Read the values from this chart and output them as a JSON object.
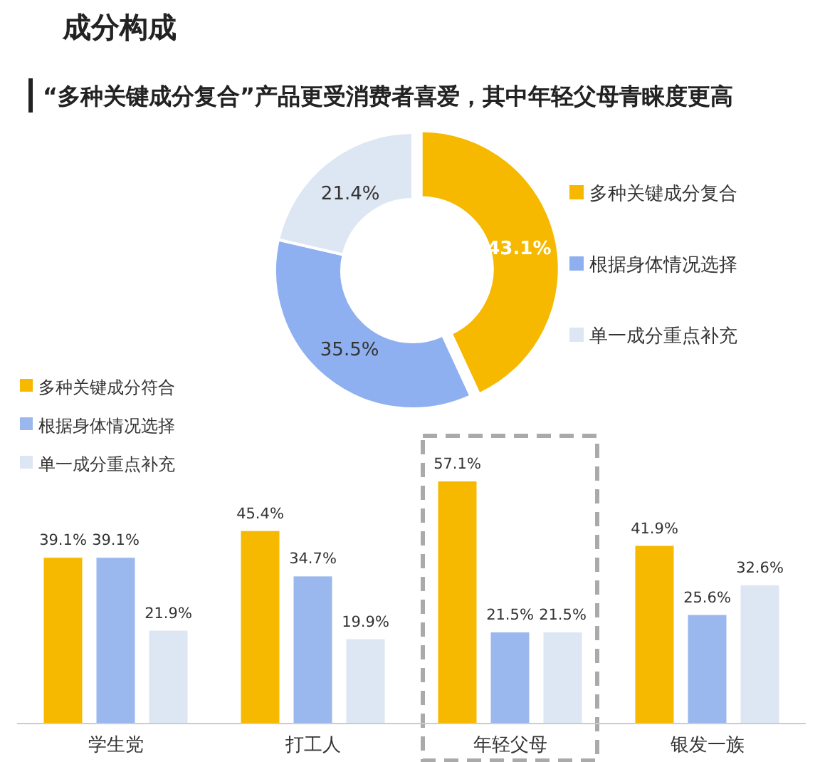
{
  "chart_data": [
    {
      "type": "donut",
      "title": "成分构成",
      "subtitle": "“多种关键成分复合”产品更受消费者喜爱，其中年轻父母青睐度更高",
      "categories": [
        "多种关键成分复合",
        "根据身体情况选择",
        "单一成分重点补充"
      ],
      "values": [
        43.1,
        35.5,
        21.4
      ],
      "colors": [
        "#f6b900",
        "#8fb0f0",
        "#dde6f3"
      ],
      "value_labels": [
        "43.1%",
        "35.5%",
        "21.4%"
      ],
      "legend": "right"
    },
    {
      "type": "bar",
      "categories": [
        "学生党",
        "打工人",
        "年轻父母",
        "银发一族"
      ],
      "series": [
        {
          "name": "多种关键成分符合",
          "color": "#f6b900",
          "values": [
            39.1,
            45.4,
            57.1,
            41.9
          ],
          "value_labels": [
            "39.1%",
            "45.4%",
            "57.1%",
            "41.9%"
          ]
        },
        {
          "name": "根据身体情况选择",
          "color": "#9ab8ee",
          "values": [
            39.1,
            34.7,
            21.5,
            25.6
          ],
          "value_labels": [
            "39.1%",
            "34.7%",
            "21.5%",
            "25.6%"
          ]
        },
        {
          "name": "单一成分重点补充",
          "color": "#dde6f3",
          "values": [
            21.9,
            19.9,
            21.5,
            32.6
          ],
          "value_labels": [
            "21.9%",
            "19.9%",
            "21.5%",
            "32.6%"
          ]
        }
      ],
      "legend": "top left"
    }
  ]
}
